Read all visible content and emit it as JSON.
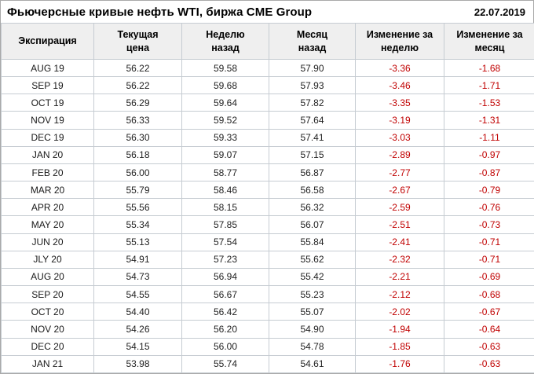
{
  "header": {
    "title": "Фьючерсные кривые нефть WTI, биржа CME Group",
    "date": "22.07.2019"
  },
  "colors": {
    "negative_value": "#c00000",
    "header_background": "#efefef",
    "table_border": "#c6ccd2"
  },
  "chart_data": {
    "type": "table",
    "title": "Фьючерсные кривые нефть WTI, биржа CME Group",
    "date": "22.07.2019",
    "columns": [
      "Экспирация",
      "Текущая\nцена",
      "Неделю\nназад",
      "Месяц\nназад",
      "Изменение за\nнеделю",
      "Изменение за\nмесяц"
    ],
    "rows": [
      [
        "AUG 19",
        "56.22",
        "59.58",
        "57.90",
        "-3.36",
        "-1.68"
      ],
      [
        "SEP 19",
        "56.22",
        "59.68",
        "57.93",
        "-3.46",
        "-1.71"
      ],
      [
        "OCT 19",
        "56.29",
        "59.64",
        "57.82",
        "-3.35",
        "-1.53"
      ],
      [
        "NOV 19",
        "56.33",
        "59.52",
        "57.64",
        "-3.19",
        "-1.31"
      ],
      [
        "DEC 19",
        "56.30",
        "59.33",
        "57.41",
        "-3.03",
        "-1.11"
      ],
      [
        "JAN 20",
        "56.18",
        "59.07",
        "57.15",
        "-2.89",
        "-0.97"
      ],
      [
        "FEB 20",
        "56.00",
        "58.77",
        "56.87",
        "-2.77",
        "-0.87"
      ],
      [
        "MAR 20",
        "55.79",
        "58.46",
        "56.58",
        "-2.67",
        "-0.79"
      ],
      [
        "APR 20",
        "55.56",
        "58.15",
        "56.32",
        "-2.59",
        "-0.76"
      ],
      [
        "MAY 20",
        "55.34",
        "57.85",
        "56.07",
        "-2.51",
        "-0.73"
      ],
      [
        "JUN 20",
        "55.13",
        "57.54",
        "55.84",
        "-2.41",
        "-0.71"
      ],
      [
        "JLY 20",
        "54.91",
        "57.23",
        "55.62",
        "-2.32",
        "-0.71"
      ],
      [
        "AUG 20",
        "54.73",
        "56.94",
        "55.42",
        "-2.21",
        "-0.69"
      ],
      [
        "SEP 20",
        "54.55",
        "56.67",
        "55.23",
        "-2.12",
        "-0.68"
      ],
      [
        "OCT 20",
        "54.40",
        "56.42",
        "55.07",
        "-2.02",
        "-0.67"
      ],
      [
        "NOV 20",
        "54.26",
        "56.20",
        "54.90",
        "-1.94",
        "-0.64"
      ],
      [
        "DEC 20",
        "54.15",
        "56.00",
        "54.78",
        "-1.85",
        "-0.63"
      ],
      [
        "JAN 21",
        "53.98",
        "55.74",
        "54.61",
        "-1.76",
        "-0.63"
      ]
    ]
  }
}
